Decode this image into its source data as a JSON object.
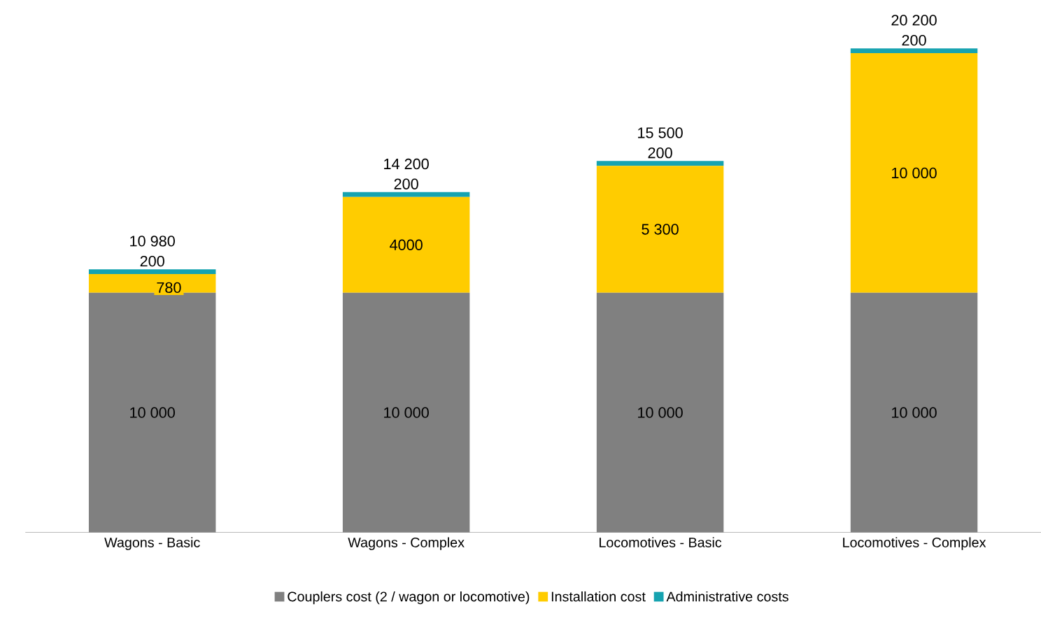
{
  "chart_data": {
    "type": "bar",
    "stacked": true,
    "categories": [
      "Wagons - Basic",
      "Wagons - Complex",
      "Locomotives - Basic",
      "Locomotives - Complex"
    ],
    "series": [
      {
        "name": "Couplers cost (2 / wagon or locomotive)",
        "color": "#808080",
        "values": [
          10000,
          10000,
          10000,
          10000
        ],
        "value_labels": [
          "10 000",
          "10 000",
          "10 000",
          "10 000"
        ]
      },
      {
        "name": "Installation cost",
        "color": "#ffcc00",
        "values": [
          780,
          4000,
          5300,
          10000
        ],
        "value_labels": [
          "780",
          "4000",
          "5 300",
          "10 000"
        ]
      },
      {
        "name": "Administrative costs",
        "color": "#16a3b0",
        "values": [
          200,
          200,
          200,
          200
        ],
        "value_labels": [
          "200",
          "200",
          "200",
          "200"
        ]
      }
    ],
    "totals": [
      "10 980",
      "14 200",
      "15 500",
      "20 200"
    ],
    "tick_labels": "x",
    "legend": "bottom"
  }
}
